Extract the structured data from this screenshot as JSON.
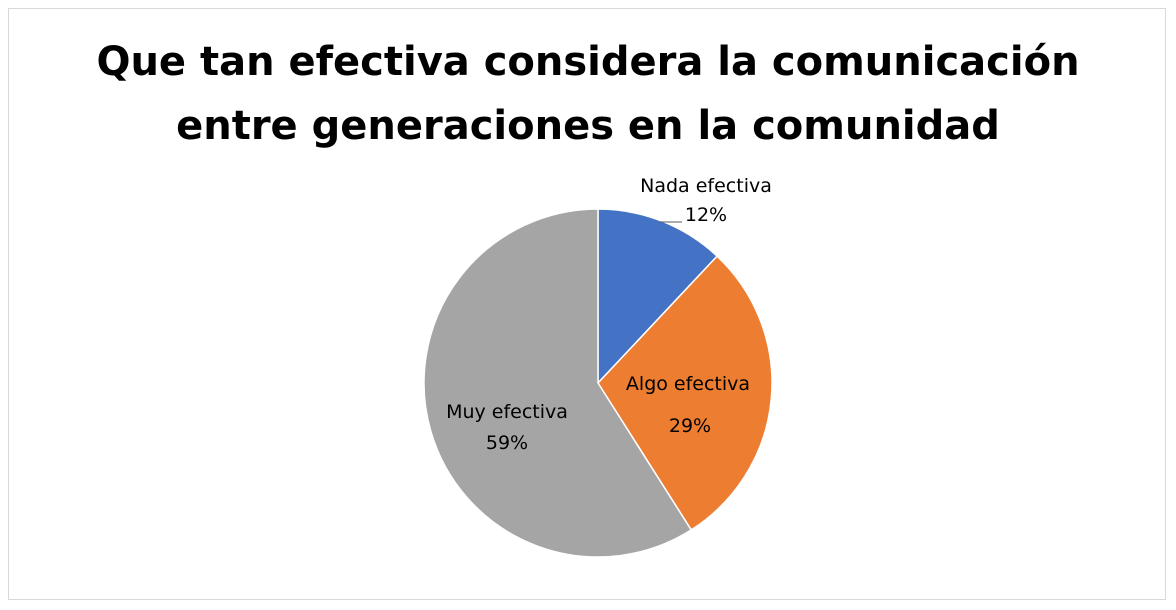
{
  "chart_data": {
    "type": "pie",
    "title": "Que tan efectiva considera la comunicación entre generaciones en la comunidad",
    "title_lines": [
      "Que tan efectiva considera la comunicación",
      "entre generaciones en la comunidad"
    ],
    "slices": [
      {
        "label": "Nada efectiva",
        "value": 12,
        "value_label": "12%",
        "color": "#4472c4"
      },
      {
        "label": "Algo efectiva",
        "value": 29,
        "value_label": "29%",
        "color": "#ed7d31"
      },
      {
        "label": "Muy efectiva",
        "value": 59,
        "value_label": "59%",
        "color": "#a5a5a5"
      }
    ],
    "legend": "none",
    "data_labels": "category-and-percent"
  }
}
